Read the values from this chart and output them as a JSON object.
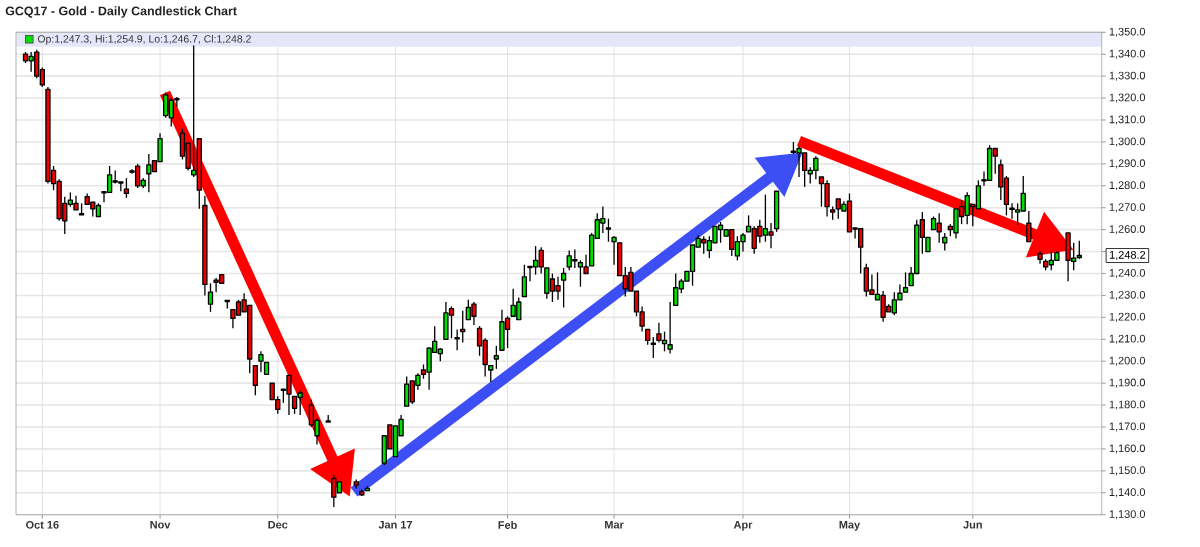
{
  "chart_data": {
    "type": "candlestick",
    "title": "GCQ17 - Gold - Daily Candlestick Chart",
    "annotations": [
      "Op:1,247.3, Hi:1,254.9, Lo:1,246.7, Cl:1,248.2",
      "1,248.2"
    ],
    "categories": [
      null,
      null,
      null,
      "Oct 16",
      null,
      null,
      null,
      null,
      null,
      null,
      null,
      null,
      null,
      null,
      null,
      null,
      null,
      null,
      null,
      null,
      null,
      null,
      null,
      null,
      "Nov",
      null,
      null,
      null,
      null,
      null,
      null,
      null,
      null,
      null,
      null,
      null,
      null,
      null,
      null,
      null,
      null,
      null,
      null,
      null,
      null,
      "Dec",
      null,
      null,
      null,
      null,
      null,
      null,
      null,
      null,
      null,
      null,
      null,
      null,
      null,
      null,
      null,
      null,
      null,
      null,
      null,
      null,
      "Jan 17",
      null,
      null,
      null,
      null,
      null,
      null,
      null,
      null,
      null,
      null,
      null,
      null,
      null,
      null,
      null,
      null,
      null,
      null,
      null,
      "Feb",
      null,
      null,
      null,
      null,
      null,
      null,
      null,
      null,
      null,
      null,
      null,
      null,
      null,
      null,
      null,
      null,
      null,
      null,
      "Mar",
      null,
      null,
      null,
      null,
      null,
      null,
      null,
      null,
      null,
      null,
      null,
      null,
      null,
      null,
      null,
      null,
      null,
      null,
      null,
      null,
      null,
      null,
      "Apr",
      null,
      null,
      null,
      null,
      null,
      null,
      null,
      null,
      null,
      null,
      null,
      null,
      null,
      null,
      null,
      null,
      null,
      null,
      "May",
      null,
      null,
      null,
      null,
      null,
      null,
      null,
      null,
      null,
      null,
      null,
      null,
      null,
      null,
      null,
      null,
      null,
      null,
      null,
      null,
      null,
      "Jun",
      null,
      null,
      null,
      null,
      null,
      null,
      null,
      null,
      null,
      null,
      null,
      null,
      null,
      null,
      null,
      null,
      null,
      null,
      null
    ],
    "ohlc": [
      [
        1340,
        1341,
        1336,
        1337
      ],
      [
        1337,
        1341,
        1332,
        1339
      ],
      [
        1341,
        1342,
        1329,
        1330
      ],
      [
        1333,
        1334,
        1325,
        1326
      ],
      [
        1324,
        1325,
        1281,
        1282
      ],
      [
        1287,
        1289,
        1278,
        1281
      ],
      [
        1282,
        1283,
        1264,
        1265
      ],
      [
        1272,
        1275,
        1258,
        1264
      ],
      [
        1271.5,
        1277,
        1270.5,
        1273.5
      ],
      [
        1272,
        1275.5,
        1269,
        1269
      ],
      [
        1267,
        1272,
        1267,
        1267
      ],
      [
        1275,
        1276.5,
        1271.5,
        1271.5
      ],
      [
        1272.5,
        1272.5,
        1266,
        1269.5
      ],
      [
        1266,
        1272,
        1266,
        1271
      ],
      [
        1277,
        1277,
        1272.5,
        1277
      ],
      [
        1277,
        1289,
        1277,
        1285
      ],
      [
        1282,
        1287,
        1281,
        1282
      ],
      [
        1281.5,
        1281.5,
        1277.5,
        1281.5
      ],
      [
        1278.5,
        1283.5,
        1274.5,
        1276.5
      ],
      [
        1286.5,
        1287.5,
        1285.5,
        1286.5
      ],
      [
        1289,
        1290,
        1279,
        1280
      ],
      [
        1280,
        1283.5,
        1279,
        1282.5
      ],
      [
        1285.5,
        1294.5,
        1277,
        1289.5
      ],
      [
        1291.5,
        1291.5,
        1286.5,
        1286.5
      ],
      [
        1291,
        1304,
        1291,
        1301.5
      ],
      [
        1312,
        1322.5,
        1311,
        1321.5
      ],
      [
        1311,
        1320,
        1307,
        1319
      ],
      [
        1319.5,
        1320.5,
        1316,
        1319.5
      ],
      [
        1304,
        1306,
        1292,
        1293.5
      ],
      [
        1299.5,
        1299.5,
        1287,
        1288
      ],
      [
        1285,
        1344,
        1284,
        1287
      ],
      [
        1301.5,
        1301.5,
        1269.5,
        1278
      ],
      [
        1271,
        1275.5,
        1230,
        1235
      ],
      [
        1226,
        1235.5,
        1222.5,
        1231.5
      ],
      [
        1237,
        1238,
        1231.5,
        1236
      ],
      [
        1239.5,
        1239.5,
        1235.5,
        1235.5
      ],
      [
        1227.5,
        1227.5,
        1224,
        1227.5
      ],
      [
        1223.5,
        1223.5,
        1215,
        1219.5
      ],
      [
        1227,
        1228,
        1221,
        1221
      ],
      [
        1228,
        1231,
        1222.5,
        1222.5
      ],
      [
        1225.5,
        1225.5,
        1194.5,
        1201
      ],
      [
        1198,
        1198,
        1184.5,
        1189
      ],
      [
        1200,
        1204.5,
        1195,
        1203
      ],
      [
        1194,
        1199.5,
        1194,
        1199.5
      ],
      [
        1190,
        1190,
        1182.5,
        1182.5
      ],
      [
        1182.5,
        1184,
        1176,
        1178
      ],
      [
        1187,
        1187,
        1181,
        1187
      ],
      [
        1193.5,
        1193.5,
        1175.5,
        1185
      ],
      [
        1184,
        1184,
        1176,
        1178.5
      ],
      [
        1183.5,
        1186.5,
        1175.5,
        1185.5
      ],
      null,
      [
        1180,
        1182.5,
        1170,
        1171
      ],
      [
        1166,
        1174,
        1162,
        1173
      ],
      null,
      [
        1172.5,
        1175.5,
        1172.5,
        1172.5
      ],
      [
        1146.5,
        1148,
        1133.5,
        1138
      ],
      [
        1140,
        1145,
        1140,
        1145
      ],
      null,
      null,
      [
        1145,
        1146,
        1142,
        1143.5
      ],
      [
        1140.5,
        1141.5,
        1138.5,
        1139
      ],
      [
        1141,
        1143,
        1141,
        1142
      ],
      null,
      null,
      [
        1153.5,
        1166,
        1152.5,
        1166
      ],
      [
        1171,
        1171,
        1160,
        1160
      ],
      [
        1156.5,
        1170.5,
        1156.5,
        1170.5
      ],
      [
        1166,
        1175.5,
        1166,
        1173.5
      ],
      [
        1179.5,
        1193,
        1179.5,
        1189.5
      ],
      [
        1191,
        1191,
        1180.5,
        1181.5
      ],
      [
        1189,
        1194.5,
        1187,
        1193.5
      ],
      [
        1196,
        1198.5,
        1192,
        1194
      ],
      [
        1195,
        1206.5,
        1187,
        1206
      ],
      [
        1204,
        1216,
        1204,
        1209
      ],
      [
        1203.5,
        1206,
        1200,
        1205.5
      ],
      [
        1210,
        1227,
        1210,
        1222
      ],
      [
        1224,
        1225,
        1210.5,
        1221
      ],
      [
        1210.5,
        1214.5,
        1205,
        1210.5
      ],
      [
        1214.5,
        1223,
        1208.5,
        1213.5
      ],
      [
        1219,
        1228,
        1219,
        1224.5
      ],
      [
        1226,
        1227,
        1216.5,
        1220.5
      ],
      [
        1215,
        1216,
        1202.5,
        1207
      ],
      [
        1209.5,
        1210.5,
        1193,
        1198.5
      ],
      [
        1196,
        1198,
        1190.5,
        1198
      ],
      [
        1201,
        1207,
        1196.5,
        1202.5
      ],
      [
        1205,
        1223.5,
        1205,
        1218
      ],
      [
        1219.5,
        1220.5,
        1206,
        1214.5
      ],
      [
        1220.5,
        1233,
        1220.5,
        1225.5
      ],
      [
        1219,
        1229,
        1219,
        1227
      ],
      [
        1229.5,
        1244,
        1229.5,
        1238.5
      ],
      [
        1243,
        1243,
        1236.5,
        1243
      ],
      [
        1243,
        1252.5,
        1239.5,
        1246
      ],
      [
        1250.5,
        1252,
        1240,
        1243
      ],
      [
        1231,
        1242.5,
        1228.5,
        1242.5
      ],
      [
        1237.5,
        1240,
        1227,
        1232
      ],
      [
        1234.5,
        1238.5,
        1228,
        1232
      ],
      [
        1237,
        1242.5,
        1224.5,
        1240
      ],
      [
        1243,
        1250.5,
        1241.5,
        1248
      ],
      [
        1246,
        1251,
        1242.5,
        1246
      ],
      [
        1243,
        1246,
        1234,
        1245
      ],
      [
        1243,
        1248.5,
        1240,
        1240
      ],
      [
        1243.5,
        1258.5,
        1243.5,
        1257.5
      ],
      [
        1256,
        1267.5,
        1256,
        1264.5
      ],
      [
        1263,
        1270.5,
        1258.5,
        1265
      ],
      [
        1260.5,
        1265,
        1254.5,
        1260.5
      ],
      [
        1254.5,
        1257,
        1244,
        1256.5
      ],
      [
        1254,
        1254,
        1239,
        1239
      ],
      [
        1239,
        1243,
        1229.5,
        1233
      ],
      [
        1240.5,
        1243,
        1232,
        1232
      ],
      [
        1232,
        1232,
        1220.5,
        1222.5
      ],
      [
        1222.5,
        1225,
        1213.5,
        1216
      ],
      [
        1214.5,
        1214.5,
        1207.5,
        1209.5
      ],
      [
        1208,
        1211,
        1201.5,
        1208
      ],
      [
        1212.5,
        1217.5,
        1208.5,
        1209.5
      ],
      [
        1208,
        1213.5,
        1204.5,
        1209.5
      ],
      [
        1205.5,
        1227,
        1203.5,
        1207.5
      ],
      [
        1225.5,
        1240,
        1225.5,
        1233.5
      ],
      [
        1233,
        1237.5,
        1231,
        1236.5
      ],
      [
        1236.5,
        1241,
        1236.5,
        1241
      ],
      [
        1241,
        1253,
        1234.5,
        1253
      ],
      [
        1252,
        1257.5,
        1252,
        1256
      ],
      [
        1255.5,
        1257,
        1249,
        1254
      ],
      [
        1250.5,
        1257,
        1247,
        1255
      ],
      [
        1254,
        1261.5,
        1254,
        1261.5
      ],
      [
        1260,
        1263.5,
        1254,
        1262
      ],
      [
        1257,
        1260,
        1257,
        1260
      ],
      [
        1260,
        1260,
        1248,
        1251
      ],
      [
        1248,
        1257,
        1246,
        1254.5
      ],
      [
        1254.5,
        1258.5,
        1250,
        1257.5
      ],
      [
        1259,
        1266.5,
        1259,
        1261.5
      ],
      [
        1260.5,
        1261.5,
        1249,
        1251.5
      ],
      [
        1261.5,
        1264.5,
        1254,
        1257
      ],
      [
        1257.5,
        1276,
        1254.5,
        1260.5
      ],
      [
        1259,
        1263,
        1251.5,
        1257.5
      ],
      [
        1260.5,
        1277.5,
        1259,
        1277.5
      ],
      null,
      null,
      [
        1295.5,
        1300,
        1294.5,
        1295.5
      ],
      [
        1295,
        1298,
        1284,
        1297
      ],
      [
        1295,
        1295,
        1279.5,
        1287
      ],
      [
        1285.5,
        1288.5,
        1281,
        1287
      ],
      [
        1287,
        1293.5,
        1283,
        1292.5
      ],
      [
        1284,
        1284,
        1270.5,
        1281
      ],
      [
        1281,
        1282.5,
        1266,
        1270.5
      ],
      [
        1269,
        1270.5,
        1264.5,
        1268
      ],
      [
        1274,
        1274,
        1265,
        1269.5
      ],
      [
        1268.5,
        1273,
        1268.5,
        1271.5
      ],
      [
        1273,
        1276.5,
        1259,
        1259
      ],
      [
        1260.5,
        1260.5,
        1256,
        1260.5
      ],
      [
        1260.5,
        1260.5,
        1240,
        1252
      ],
      [
        1242.5,
        1244.5,
        1229.5,
        1232
      ],
      [
        1232.5,
        1239.5,
        1230.5,
        1230.5
      ],
      [
        1228,
        1240.5,
        1228,
        1230.5
      ],
      [
        1230,
        1232,
        1218,
        1220
      ],
      [
        1225,
        1226,
        1222.5,
        1222.5
      ],
      [
        1222,
        1231.5,
        1221,
        1228
      ],
      [
        1228,
        1235,
        1228,
        1231
      ],
      [
        1231.5,
        1240.5,
        1231.5,
        1233.5
      ],
      [
        1234.5,
        1243,
        1234.5,
        1240
      ],
      [
        1240,
        1264.5,
        1240,
        1262
      ],
      [
        1264.5,
        1268,
        1249,
        1256.5
      ],
      [
        1250,
        1256.5,
        1250,
        1256.5
      ],
      [
        1260,
        1266,
        1260,
        1265
      ],
      [
        1263,
        1267.5,
        1254,
        1259
      ],
      [
        1254,
        1258.5,
        1250.5,
        1256.5
      ],
      [
        1261.5,
        1262.5,
        1257,
        1260
      ],
      [
        1258.5,
        1269.5,
        1256,
        1269.5
      ],
      [
        1270.5,
        1273.5,
        1262.5,
        1266
      ],
      [
        1266.5,
        1277,
        1262.5,
        1275.5
      ],
      [
        1271.5,
        1271.5,
        1261.5,
        1270.5
      ],
      [
        1269.5,
        1282.5,
        1269.5,
        1280
      ],
      [
        1282.5,
        1286.5,
        1280,
        1282.5
      ],
      [
        1282.5,
        1298.5,
        1282.5,
        1297
      ],
      [
        1297,
        1297,
        1285.5,
        1293.5
      ],
      [
        1289.5,
        1292,
        1273.5,
        1279.5
      ],
      [
        1283.5,
        1284.5,
        1266.5,
        1271.5
      ],
      [
        1269.5,
        1272,
        1265,
        1269.5
      ],
      [
        1268,
        1272,
        1262,
        1269
      ],
      [
        1268.5,
        1284.5,
        1268.5,
        1276.5
      ],
      [
        1263,
        1268.5,
        1254.5,
        1254.5
      ],
      null,
      [
        1249,
        1250,
        1244.5,
        1246.5
      ],
      [
        1245.5,
        1246.5,
        1241.5,
        1243
      ],
      [
        1244,
        1250,
        1241.5,
        1246
      ],
      [
        1246,
        1250,
        1246,
        1249.5
      ],
      null,
      [
        1258.5,
        1258.5,
        1236.5,
        1246
      ],
      [
        1245.5,
        1254,
        1241.5,
        1247
      ],
      [
        1247.3,
        1254.9,
        1246.7,
        1248.2
      ]
    ],
    "colors": [
      "#ee0000",
      "#00dd00",
      "#ee0000",
      "#ee0000",
      "#ee0000",
      "#ee0000",
      "#ee0000",
      "#ee0000",
      "#00dd00",
      "#ee0000",
      "#000000",
      "#ee0000",
      "#ee0000",
      "#00dd00",
      "#000000",
      "#00dd00",
      "#000000",
      "#000000",
      "#ee0000",
      "#000000",
      "#ee0000",
      "#00dd00",
      "#00dd00",
      "#ee0000",
      "#00dd00",
      "#00dd00",
      "#00dd00",
      "#000000",
      "#ee0000",
      "#ee0000",
      "#00dd00",
      "#ee0000",
      "#ee0000",
      "#00dd00",
      "#ee0000",
      "#ee0000",
      "#000000",
      "#ee0000",
      "#ee0000",
      "#ee0000",
      "#ee0000",
      "#ee0000",
      "#00dd00",
      "#00dd00",
      "#ee0000",
      "#ee0000",
      "#000000",
      "#ee0000",
      "#ee0000",
      "#00dd00",
      null,
      "#ee0000",
      "#00dd00",
      null,
      "#000000",
      "#ee0000",
      "#00dd00",
      null,
      null,
      "#ee0000",
      "#ee0000",
      "#00dd00",
      null,
      null,
      "#00dd00",
      "#ee0000",
      "#00dd00",
      "#00dd00",
      "#00dd00",
      "#ee0000",
      "#00dd00",
      "#ee0000",
      "#00dd00",
      "#00dd00",
      "#00dd00",
      "#00dd00",
      "#ee0000",
      "#000000",
      "#ee0000",
      "#00dd00",
      "#ee0000",
      "#ee0000",
      "#ee0000",
      "#00dd00",
      "#00dd00",
      "#00dd00",
      "#ee0000",
      "#00dd00",
      "#00dd00",
      "#00dd00",
      "#000000",
      "#00dd00",
      "#ee0000",
      "#00dd00",
      "#ee0000",
      "#ee0000",
      "#00dd00",
      "#00dd00",
      "#000000",
      "#00dd00",
      "#ee0000",
      "#00dd00",
      "#00dd00",
      "#00dd00",
      "#000000",
      "#00dd00",
      "#ee0000",
      "#ee0000",
      "#ee0000",
      "#ee0000",
      "#ee0000",
      "#ee0000",
      "#000000",
      "#ee0000",
      "#00dd00",
      "#00dd00",
      "#00dd00",
      "#00dd00",
      "#00dd00",
      "#00dd00",
      "#00dd00",
      "#ee0000",
      "#00dd00",
      "#00dd00",
      "#00dd00",
      "#00dd00",
      "#ee0000",
      "#00dd00",
      "#00dd00",
      "#00dd00",
      "#ee0000",
      "#ee0000",
      "#00dd00",
      "#ee0000",
      "#00dd00",
      null,
      null,
      "#000000",
      "#00dd00",
      "#ee0000",
      "#00dd00",
      "#00dd00",
      "#ee0000",
      "#ee0000",
      "#ee0000",
      "#ee0000",
      "#00dd00",
      "#ee0000",
      "#000000",
      "#ee0000",
      "#ee0000",
      "#ee0000",
      "#00dd00",
      "#ee0000",
      "#ee0000",
      "#00dd00",
      "#00dd00",
      "#00dd00",
      "#00dd00",
      "#00dd00",
      "#ee0000",
      "#00dd00",
      "#00dd00",
      "#ee0000",
      "#00dd00",
      "#ee0000",
      "#00dd00",
      "#ee0000",
      "#00dd00",
      "#ee0000",
      "#00dd00",
      "#000000",
      "#00dd00",
      "#ee0000",
      "#ee0000",
      "#ee0000",
      "#000000",
      "#00dd00",
      "#00dd00",
      "#ee0000",
      null,
      "#ee0000",
      "#ee0000",
      "#00dd00",
      "#00dd00",
      null,
      "#ee0000",
      "#00dd00",
      "#00dd00"
    ],
    "ylim": [
      1130,
      1350
    ],
    "yticks": [
      {
        "value": 1130,
        "label": "1,130.0"
      },
      {
        "value": 1140,
        "label": "1,140.0"
      },
      {
        "value": 1150,
        "label": "1,150.0"
      },
      {
        "value": 1160,
        "label": "1,160.0"
      },
      {
        "value": 1170,
        "label": "1,170.0"
      },
      {
        "value": 1180,
        "label": "1,180.0"
      },
      {
        "value": 1190,
        "label": "1,190.0"
      },
      {
        "value": 1200,
        "label": "1,200.0"
      },
      {
        "value": 1210,
        "label": "1,210.0"
      },
      {
        "value": 1220,
        "label": "1,220.0"
      },
      {
        "value": 1230,
        "label": "1,230.0"
      },
      {
        "value": 1240,
        "label": "1,240.0"
      },
      {
        "value": 1250,
        "label": null
      },
      {
        "value": 1260,
        "label": "1,260.0"
      },
      {
        "value": 1270,
        "label": "1,270.0"
      },
      {
        "value": 1280,
        "label": "1,280.0"
      },
      {
        "value": 1290,
        "label": "1,290.0"
      },
      {
        "value": 1300,
        "label": "1,300.0"
      },
      {
        "value": 1310,
        "label": "1,310.0"
      },
      {
        "value": 1320,
        "label": "1,320.0"
      },
      {
        "value": 1330,
        "label": "1,330.0"
      },
      {
        "value": 1340,
        "label": "1,340.0"
      },
      {
        "value": 1350,
        "label": "1,350.0"
      }
    ],
    "grid": true
  }
}
